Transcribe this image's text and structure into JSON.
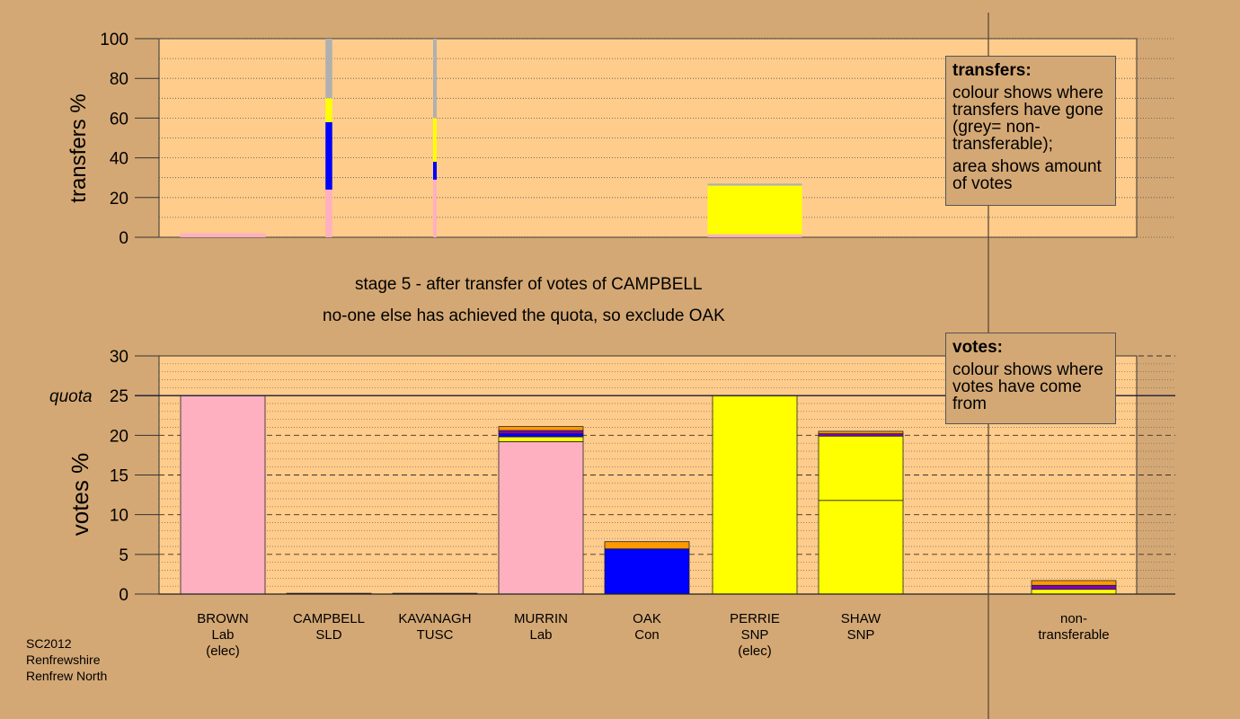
{
  "top_title_1": "stage 5 - after transfer of votes of CAMPBELL",
  "top_title_2": "no-one else has achieved the quota, so exclude OAK",
  "footer": [
    "SC2012",
    "Renfrewshire",
    "Renfrew North"
  ],
  "transfers_box": {
    "heading": "transfers:",
    "line1": "colour shows where transfers have gone (grey= non-transferable);",
    "line2": "area shows amount of votes"
  },
  "votes_box": {
    "heading": "votes:",
    "line1": "colour shows where votes have come from"
  },
  "colors": {
    "Lab": "#ffb0c0",
    "SNP": "#ffff00",
    "Con": "#0000ff",
    "LD": "#ff9900",
    "TUSC": "#8000c0",
    "nontransferable": "#b0b0b0",
    "panel": "#ffcc8c",
    "background": "#d4a874"
  },
  "candidates": [
    {
      "name": "BROWN",
      "party": "Lab",
      "note": "(elec)"
    },
    {
      "name": "CAMPBELL",
      "party": "SLD",
      "note": ""
    },
    {
      "name": "KAVANAGH",
      "party": "TUSC",
      "note": ""
    },
    {
      "name": "MURRIN",
      "party": "Lab",
      "note": ""
    },
    {
      "name": "OAK",
      "party": "Con",
      "note": ""
    },
    {
      "name": "PERRIE",
      "party": "SNP",
      "note": "(elec)"
    },
    {
      "name": "SHAW",
      "party": "SNP",
      "note": ""
    },
    {
      "name": "non-",
      "party": "transferable",
      "note": ""
    }
  ],
  "chart_data": [
    {
      "type": "bar",
      "ylabel": "transfers %",
      "ylim": [
        0,
        100
      ],
      "yticks": [
        0,
        20,
        40,
        60,
        80,
        100
      ],
      "grid": "dotted",
      "legend_position": "top-right",
      "columns": [
        {
          "candidate": "BROWN",
          "width_share": 1.9,
          "segments": [
            {
              "color": "Lab",
              "value": 2
            }
          ]
        },
        {
          "candidate": "CAMPBELL",
          "width_share": 0.15,
          "segments": [
            {
              "color": "Lab",
              "value": 24
            },
            {
              "color": "Con",
              "value": 34
            },
            {
              "color": "SNP",
              "value": 12
            },
            {
              "color": "nontransferable",
              "value": 30
            }
          ]
        },
        {
          "candidate": "KAVANAGH",
          "width_share": 0.08,
          "segments": [
            {
              "color": "Lab",
              "value": 29
            },
            {
              "color": "Con",
              "value": 9
            },
            {
              "color": "SNP",
              "value": 22
            },
            {
              "color": "nontransferable",
              "value": 40
            }
          ]
        },
        {
          "candidate": "PERRIE",
          "width_share": 2.1,
          "segments": [
            {
              "color": "Lab",
              "value": 1.5
            },
            {
              "color": "SNP",
              "value": 24.5
            },
            {
              "color": "nontransferable",
              "value": 1
            }
          ]
        }
      ]
    },
    {
      "type": "bar",
      "ylabel": "votes %",
      "ylim": [
        0,
        30
      ],
      "yticks": [
        0,
        5,
        10,
        15,
        20,
        25,
        30
      ],
      "quota": 25,
      "quota_label": "quota",
      "grid": "dashed",
      "legend_position": "top-right",
      "bars": [
        {
          "candidate": "BROWN",
          "segments": [
            {
              "color": "Lab",
              "value": 25
            }
          ]
        },
        {
          "candidate": "CAMPBELL",
          "segments": [
            {
              "color": "LD",
              "value": 0.1
            }
          ]
        },
        {
          "candidate": "KAVANAGH",
          "segments": [
            {
              "color": "TUSC",
              "value": 0.1
            }
          ]
        },
        {
          "candidate": "MURRIN",
          "segments": [
            {
              "color": "Lab",
              "value": 19.2
            },
            {
              "color": "SNP",
              "value": 0.6
            },
            {
              "color": "Con",
              "value": 0.4
            },
            {
              "color": "TUSC",
              "value": 0.4
            },
            {
              "color": "LD",
              "value": 0.5
            }
          ]
        },
        {
          "candidate": "OAK",
          "segments": [
            {
              "color": "Con",
              "value": 5.7
            },
            {
              "color": "LD",
              "value": 0.9
            }
          ]
        },
        {
          "candidate": "PERRIE",
          "segments": [
            {
              "color": "SNP",
              "value": 25
            }
          ]
        },
        {
          "candidate": "SHAW",
          "segments": [
            {
              "color": "SNP",
              "value": 11.8
            },
            {
              "color": "SNP",
              "value": 8.1
            },
            {
              "color": "TUSC",
              "value": 0.3
            },
            {
              "color": "LD",
              "value": 0.3
            }
          ]
        },
        {
          "candidate": "non-transferable",
          "segments": [
            {
              "color": "SNP",
              "value": 0.6
            },
            {
              "color": "TUSC",
              "value": 0.5
            },
            {
              "color": "LD",
              "value": 0.6
            }
          ]
        }
      ]
    }
  ]
}
